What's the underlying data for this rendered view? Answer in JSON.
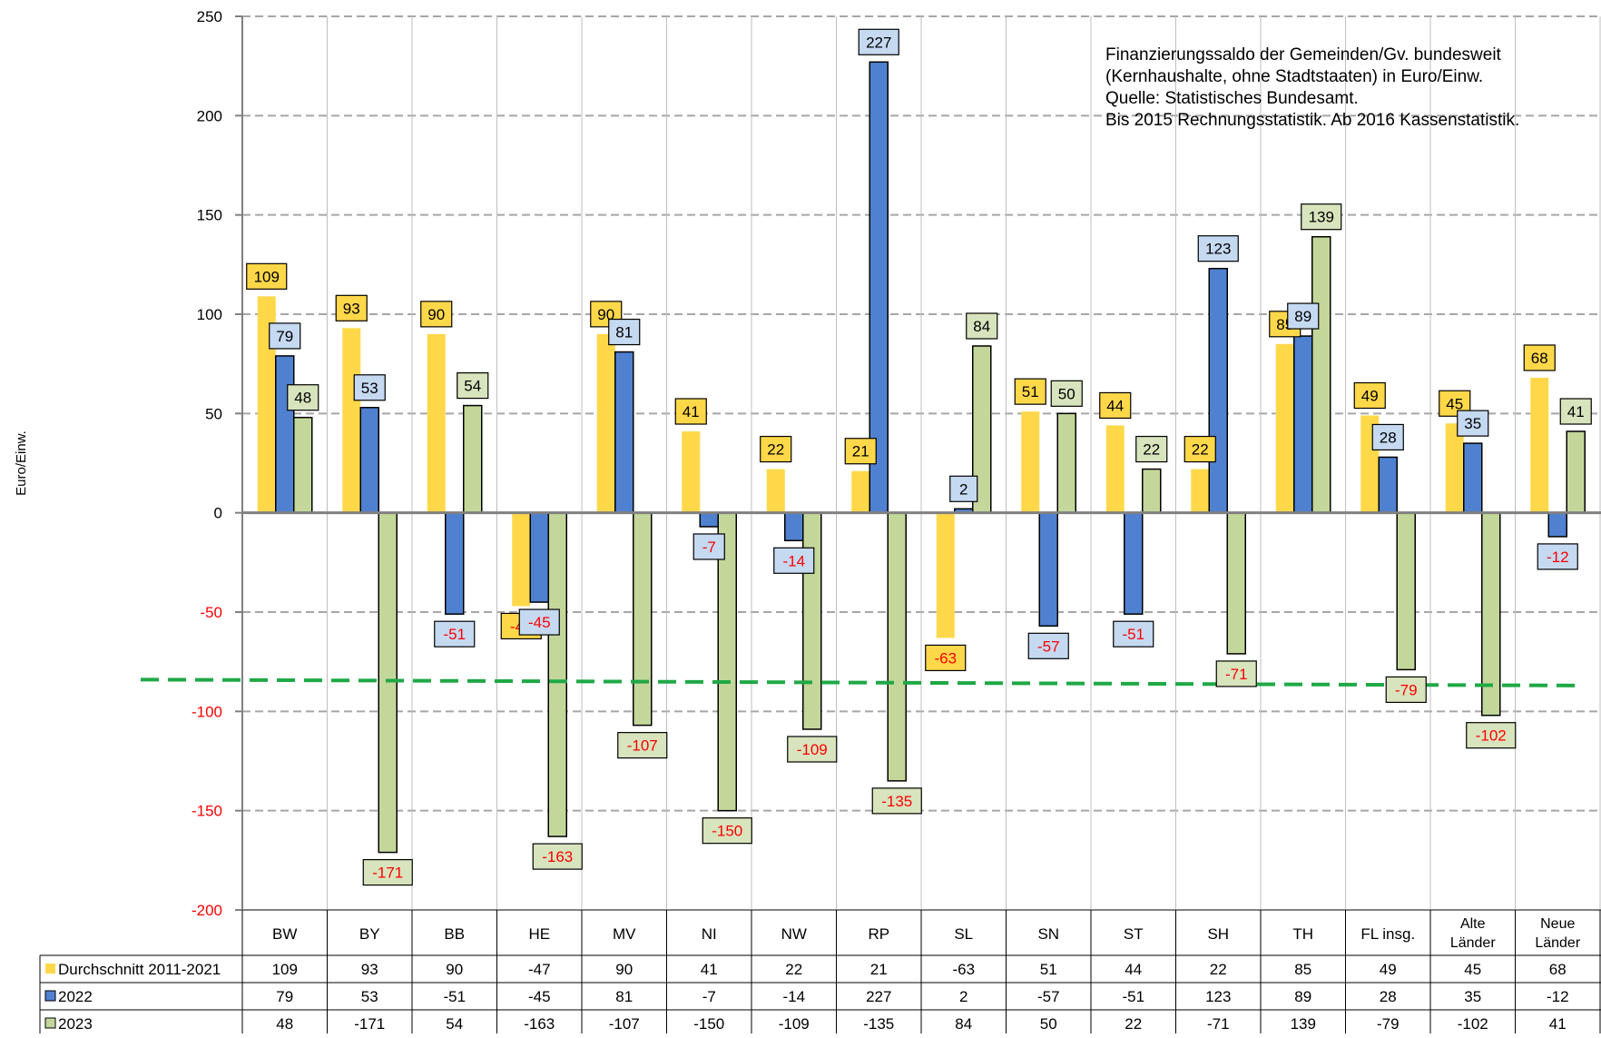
{
  "chart_data": {
    "type": "bar",
    "ylabel": "Euro/Einw.",
    "ylim": [
      -200,
      250
    ],
    "yticks": [
      250,
      200,
      150,
      100,
      50,
      0,
      -50,
      -100,
      -150,
      -200
    ],
    "grid": "horizontal dashed",
    "categories": [
      {
        "label": "BW"
      },
      {
        "label": "BY"
      },
      {
        "label": "BB"
      },
      {
        "label": "HE"
      },
      {
        "label": "MV"
      },
      {
        "label": "NI"
      },
      {
        "label": "NW"
      },
      {
        "label": "RP"
      },
      {
        "label": "SL"
      },
      {
        "label": "SN"
      },
      {
        "label": "ST"
      },
      {
        "label": "SH"
      },
      {
        "label": "TH"
      },
      {
        "label": "FL insg."
      },
      {
        "label": "Alte Länder",
        "line1": "Alte",
        "line2": "Länder"
      },
      {
        "label": "Neue Länder",
        "line1": "Neue",
        "line2": "Länder"
      }
    ],
    "series": [
      {
        "name": "Durchschnitt 2011-2021",
        "color": "#FFD84A",
        "label_fill": "#FFD84A",
        "values": [
          109,
          93,
          90,
          -47,
          90,
          41,
          22,
          21,
          -63,
          51,
          44,
          22,
          85,
          49,
          45,
          68
        ]
      },
      {
        "name": "2022",
        "color": "#4F81D0",
        "label_fill": "#C5D9F1",
        "values": [
          79,
          53,
          -51,
          -45,
          81,
          -7,
          -14,
          227,
          2,
          -57,
          -51,
          123,
          89,
          28,
          35,
          -12
        ]
      },
      {
        "name": "2023",
        "color": "#C4D79B",
        "label_fill": "#D7E4BD",
        "values": [
          48,
          -171,
          54,
          -163,
          -107,
          -150,
          -109,
          -135,
          84,
          50,
          22,
          -71,
          139,
          -79,
          -102,
          41
        ]
      }
    ],
    "reference_line": {
      "from": -84,
      "to": -87,
      "color": "#1FA846"
    },
    "annotation": [
      "Finanzierungssaldo der Gemeinden/Gv. bundesweit",
      "(Kernhaushalte, ohne Stadtstaaten) in Euro/Einw.",
      "Quelle: Statistisches Bundesamt.",
      "Bis 2015 Rechnungsstatistik. Ab 2016 Kassenstatistik."
    ],
    "negative_label_color": "#FF0000"
  }
}
